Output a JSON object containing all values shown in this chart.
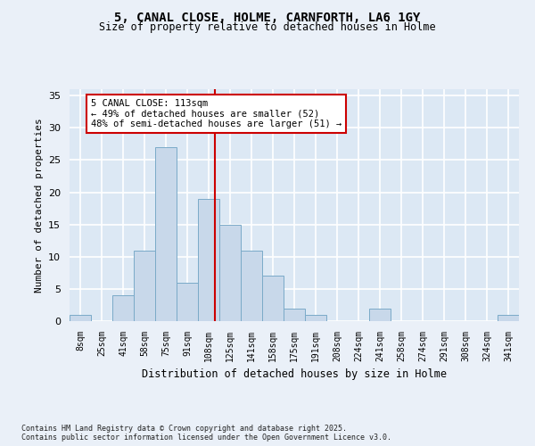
{
  "title": "5, CANAL CLOSE, HOLME, CARNFORTH, LA6 1GY",
  "subtitle": "Size of property relative to detached houses in Holme",
  "xlabel": "Distribution of detached houses by size in Holme",
  "ylabel": "Number of detached properties",
  "bin_labels": [
    "8sqm",
    "25sqm",
    "41sqm",
    "58sqm",
    "75sqm",
    "91sqm",
    "108sqm",
    "125sqm",
    "141sqm",
    "158sqm",
    "175sqm",
    "191sqm",
    "208sqm",
    "224sqm",
    "241sqm",
    "258sqm",
    "274sqm",
    "291sqm",
    "308sqm",
    "324sqm",
    "341sqm"
  ],
  "bar_heights": [
    1,
    0,
    4,
    11,
    27,
    6,
    19,
    15,
    11,
    7,
    2,
    1,
    0,
    0,
    2,
    0,
    0,
    0,
    0,
    0,
    1
  ],
  "bar_color": "#c8d8ea",
  "bar_edge_color": "#7aaac8",
  "highlight_line_color": "#cc0000",
  "annotation_text": "5 CANAL CLOSE: 113sqm\n← 49% of detached houses are smaller (52)\n48% of semi-detached houses are larger (51) →",
  "annotation_box_color": "#ffffff",
  "annotation_box_edge_color": "#cc0000",
  "ylim": [
    0,
    36
  ],
  "yticks": [
    0,
    5,
    10,
    15,
    20,
    25,
    30,
    35
  ],
  "plot_bg_color": "#dce8f4",
  "fig_bg_color": "#eaf0f8",
  "grid_color": "#ffffff",
  "footer_text": "Contains HM Land Registry data © Crown copyright and database right 2025.\nContains public sector information licensed under the Open Government Licence v3.0."
}
